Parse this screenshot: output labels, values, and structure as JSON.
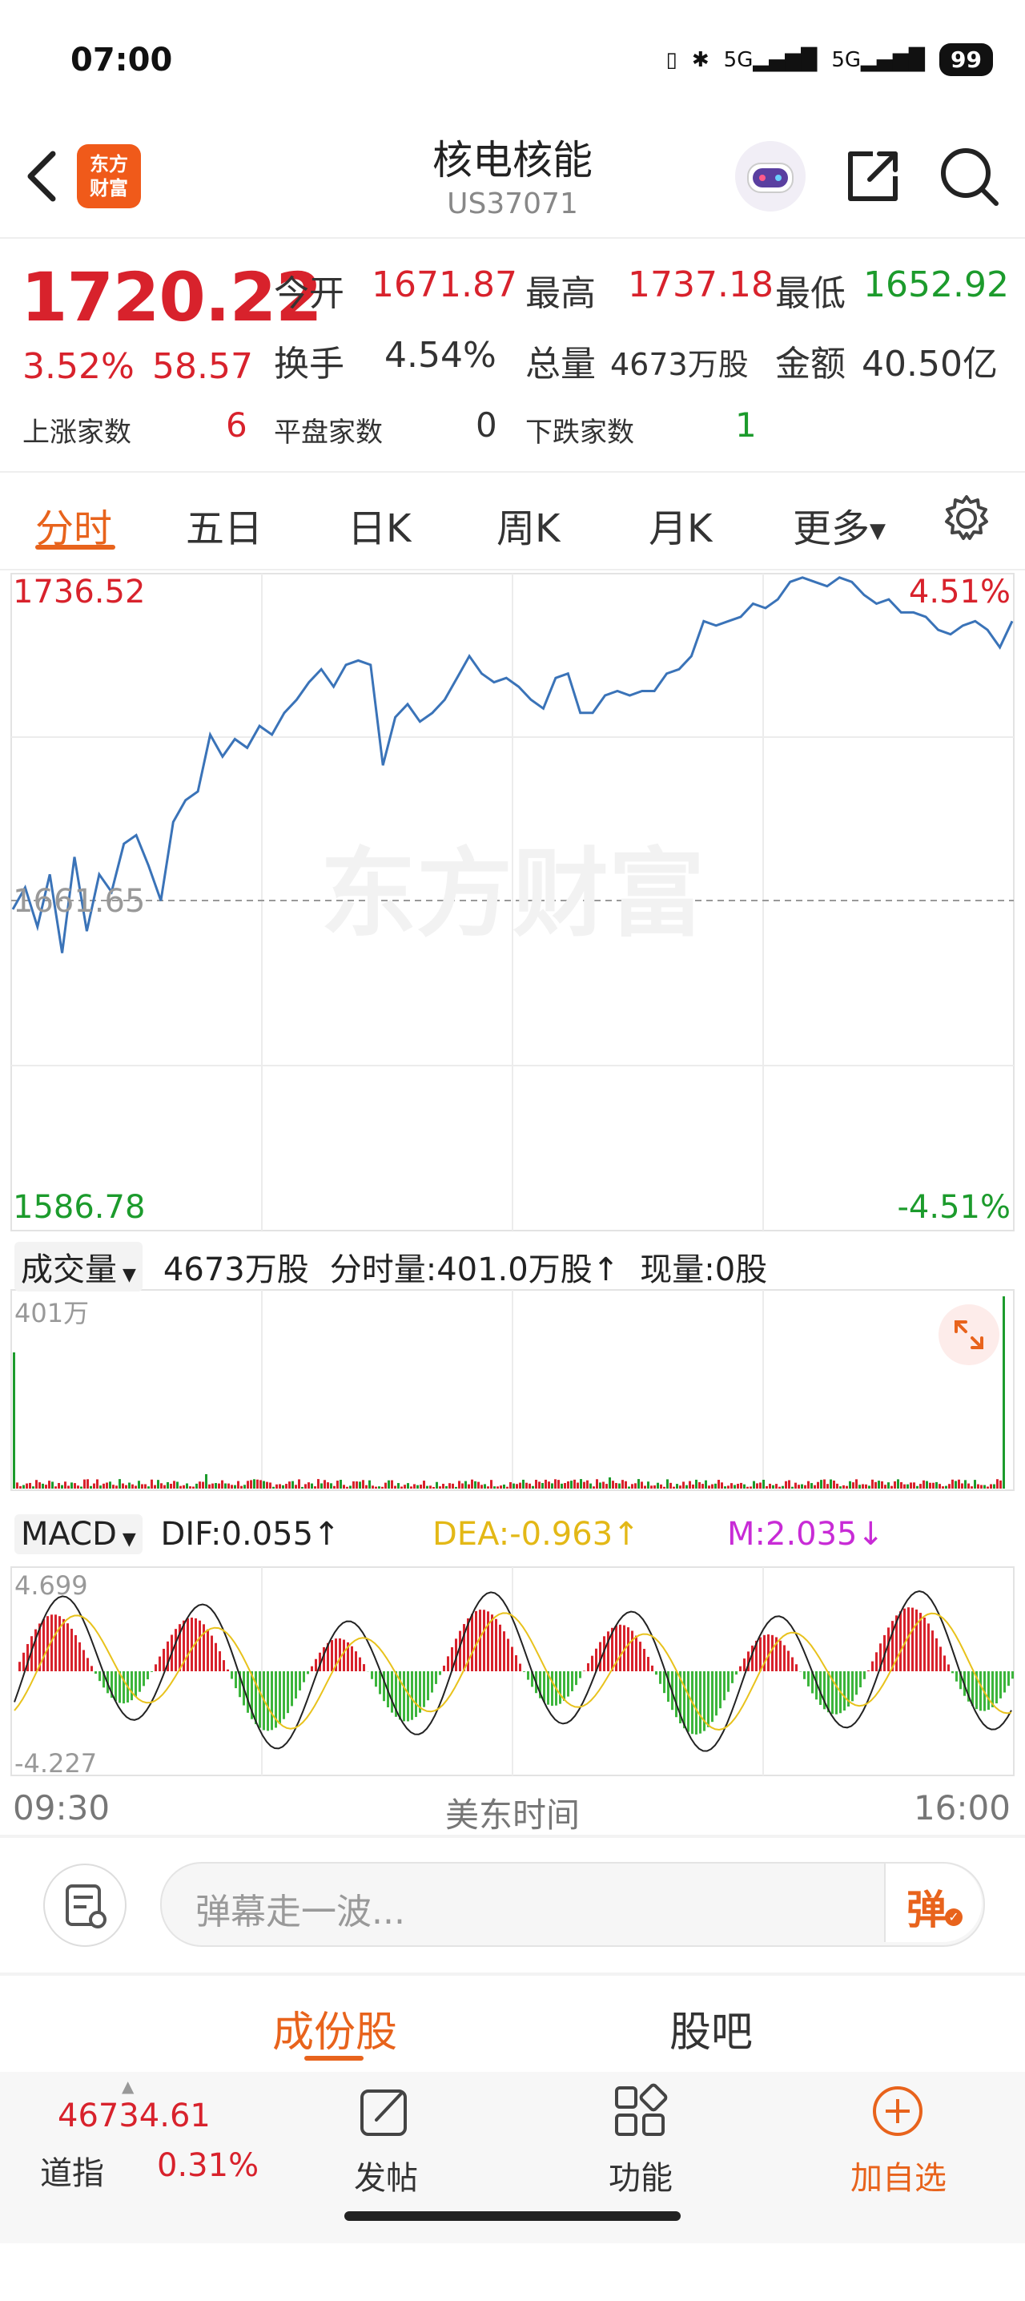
{
  "status_bar": {
    "time": "07:00",
    "network1": "5G",
    "network2": "5G",
    "battery": "99"
  },
  "header": {
    "logo_line1": "东方",
    "logo_line2": "财富",
    "title": "核电核能",
    "code": "US37071"
  },
  "quote": {
    "price": "1720.22",
    "change_pct": "3.52%",
    "change_abs": "58.57",
    "open_label": "今开",
    "open": "1671.87",
    "high_label": "最高",
    "high": "1737.18",
    "low_label": "最低",
    "low": "1652.92",
    "turnover_label": "换手",
    "turnover": "4.54%",
    "volume_label": "总量",
    "volume": "4673万股",
    "amount_label": "金额",
    "amount": "40.50亿",
    "up_label": "上涨家数",
    "up": "6",
    "flat_label": "平盘家数",
    "flat": "0",
    "down_label": "下跌家数",
    "down": "1"
  },
  "tabs": {
    "t1": "分时",
    "t2": "五日",
    "t3": "日K",
    "t4": "周K",
    "t5": "月K",
    "t6": "更多"
  },
  "chart": {
    "top_price": "1736.52",
    "top_pct": "4.51%",
    "base_price": "1661.65",
    "bottom_price": "1586.78",
    "bottom_pct": "-4.51%",
    "watermark": "东方财富"
  },
  "volume_panel": {
    "selector": "成交量",
    "total": "4673万股",
    "tick_vol": "分时量:401.0万股↑",
    "current": "现量:0股",
    "max_label": "401万"
  },
  "macd_panel": {
    "selector": "MACD",
    "dif": "DIF:0.055↑",
    "dea": "DEA:-0.963↑",
    "m": "M:2.035↓",
    "max_label": "4.699",
    "min_label": "-4.227"
  },
  "time_axis": {
    "start": "09:30",
    "mid": "美东时间",
    "end": "16:00"
  },
  "comment": {
    "placeholder": "弹幕走一波...",
    "danmu": "弹"
  },
  "section_tabs": {
    "components": "成份股",
    "forum": "股吧"
  },
  "bottom_bar": {
    "index_value": "46734.61",
    "index_name": "道指",
    "index_pct": "0.31%",
    "post": "发帖",
    "functions": "功能",
    "add_watch": "加自选"
  },
  "colors": {
    "up": "#d8222c",
    "down": "#1c9b2c",
    "accent": "#e8631c",
    "line": "#3a73b8"
  },
  "chart_data": {
    "type": "line",
    "title": "",
    "xlabel": "美东时间",
    "x_range": [
      "09:30",
      "16:00"
    ],
    "ylim": [
      1586.78,
      1736.52
    ],
    "reference": 1661.65,
    "series": [
      {
        "values": [
          1660,
          1665,
          1656,
          1668,
          1650,
          1672,
          1655,
          1668,
          1664,
          1675,
          1677,
          1670,
          1662,
          1680,
          1685,
          1687,
          1700,
          1695,
          1699,
          1697,
          1702,
          1700,
          1705,
          1708,
          1712,
          1715,
          1711,
          1716,
          1717,
          1716,
          1693,
          1704,
          1707,
          1703,
          1705,
          1708,
          1713,
          1718,
          1714,
          1712,
          1713,
          1711,
          1708,
          1706,
          1713,
          1714,
          1705,
          1705,
          1709,
          1710,
          1709,
          1710,
          1710,
          1714,
          1715,
          1718,
          1726,
          1725,
          1726,
          1727,
          1730,
          1729,
          1731,
          1735,
          1736,
          1735,
          1734,
          1736,
          1735,
          1732,
          1730,
          1731,
          1728,
          1728,
          1727,
          1724,
          1723,
          1725,
          1726,
          1724,
          1720,
          1726
        ]
      }
    ]
  }
}
